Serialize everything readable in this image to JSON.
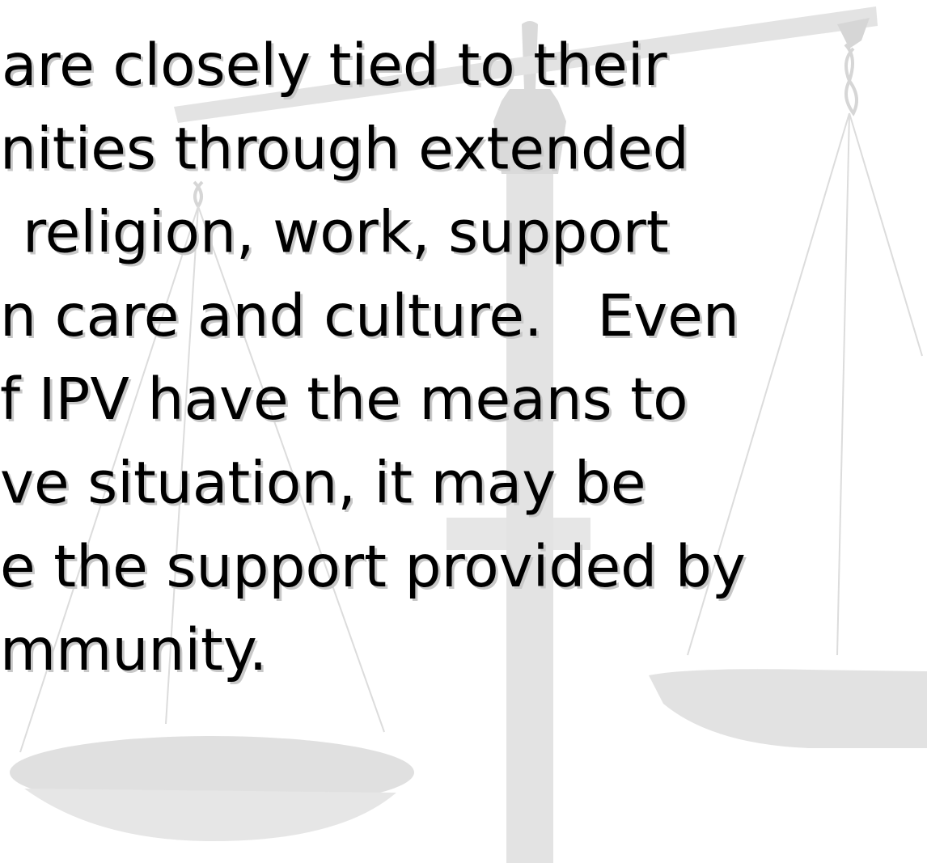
{
  "slide": {
    "lines": [
      "are closely tied to their",
      "nities through extended",
      "religion, work, support",
      "n care and culture.   Even",
      "f IPV have the means to",
      "ve situation, it may be",
      "e the support provided by",
      "mmunity."
    ]
  }
}
